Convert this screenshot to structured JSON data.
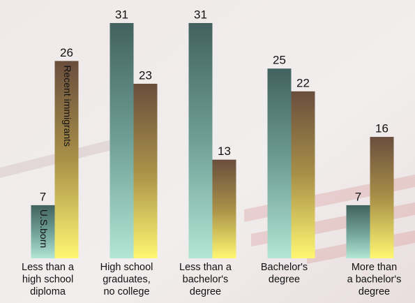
{
  "chart_data": {
    "type": "bar",
    "categories": [
      [
        "Less than a",
        "high school",
        "diploma"
      ],
      [
        "High school",
        "graduates,",
        "no college"
      ],
      [
        "Less than a",
        "bachelor's",
        "degree"
      ],
      [
        "Bachelor's",
        "degree"
      ],
      [
        "More than",
        "a bachelor's",
        "degree"
      ]
    ],
    "series": [
      {
        "name": "U.S.born",
        "color": [
          "#42625f",
          "#6f9f96",
          "#b3e6d4"
        ],
        "values": [
          7,
          31,
          31,
          25,
          7
        ]
      },
      {
        "name": "Recent immigrants",
        "color": [
          "#6a4e3e",
          "#a99048",
          "#fff772"
        ],
        "values": [
          26,
          23,
          13,
          22,
          16
        ]
      }
    ]
  }
}
